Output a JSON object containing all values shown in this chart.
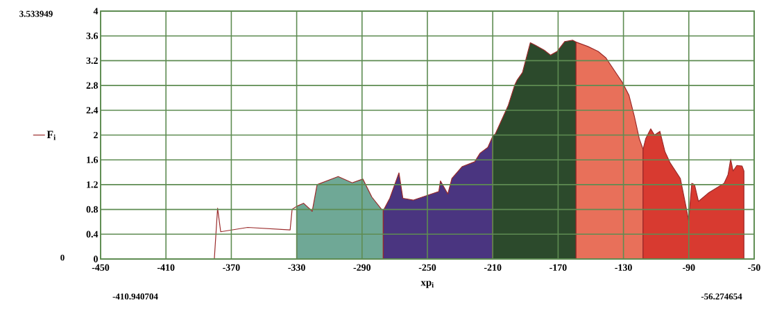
{
  "chart_data": {
    "type": "area",
    "xlabel": "xp$_{i}$",
    "legend": "left",
    "grid": true,
    "xlim": [
      -450,
      -50
    ],
    "ylim": [
      0,
      4
    ],
    "xticks": [
      -450,
      -410,
      -370,
      -330,
      -290,
      -250,
      -210,
      -170,
      -130,
      -90,
      -50
    ],
    "yticks": [
      0,
      0.4,
      0.8,
      1.2,
      1.6,
      2,
      2.4,
      2.8,
      3.2,
      3.6,
      4
    ],
    "annotations": [
      "3.533949",
      "0",
      "-410.940704",
      "-56.274654"
    ],
    "series": [
      {
        "name": "F$_{i}$",
        "type": "line",
        "color": "#9a2a2a",
        "x": [
          -410.940704,
          -380.4,
          -378.4,
          -376.5,
          -360,
          -334,
          -332.8,
          -330
        ],
        "values": [
          0,
          0,
          0.82,
          0.44,
          0.51,
          0.47,
          0.8,
          0.85
        ]
      },
      {
        "color": "#6fa896",
        "x": [
          -330,
          -325.8,
          -320.5,
          -317.5,
          -304.6,
          -296,
          -289.5,
          -284,
          -278,
          -277
        ],
        "values": [
          0.85,
          0.9,
          0.77,
          1.2,
          1.33,
          1.23,
          1.29,
          1.0,
          0.8,
          0.8
        ]
      },
      {
        "color": "#4a3580",
        "x": [
          -277,
          -273,
          -267.4,
          -265,
          -258.7,
          -243,
          -242,
          -237.5,
          -235,
          -228.8,
          -221,
          -217.7,
          -213,
          -210
        ],
        "values": [
          0.78,
          0.98,
          1.39,
          0.98,
          0.95,
          1.09,
          1.26,
          1.05,
          1.3,
          1.49,
          1.57,
          1.71,
          1.8,
          1.98
        ]
      },
      {
        "color": "#2c4a2c",
        "x": [
          -210,
          -208.4,
          -200.5,
          -196.5,
          -195,
          -191.8,
          -187,
          -184,
          -178.5,
          -174.6,
          -170.6,
          -165.9,
          -161,
          -159
        ],
        "values": [
          1.98,
          2.02,
          2.48,
          2.81,
          2.89,
          3.01,
          3.49,
          3.45,
          3.37,
          3.29,
          3.35,
          3.51,
          3.53,
          3.5
        ]
      },
      {
        "color": "#e8705a",
        "x": [
          -159,
          -151.8,
          -145.5,
          -140.9,
          -134.5,
          -130.7,
          -126.6,
          -123.4,
          -120.3,
          -118
        ],
        "values": [
          3.5,
          3.43,
          3.35,
          3.25,
          3.0,
          2.85,
          2.64,
          2.31,
          1.94,
          1.77
        ]
      },
      {
        "color": "#d83a30",
        "x": [
          -118,
          -116.4,
          -113.3,
          -111,
          -107.7,
          -104.6,
          -101.4,
          -95.2,
          -92,
          -90.1,
          -88.2,
          -86.5,
          -84.1,
          -77.8,
          -68.4,
          -66,
          -64.4,
          -62.9,
          -60.6,
          -57.4,
          -56.274654
        ],
        "values": [
          1.77,
          1.94,
          2.1,
          2.0,
          2.06,
          1.73,
          1.55,
          1.3,
          0.88,
          0.62,
          1.22,
          1.2,
          0.93,
          1.07,
          1.22,
          1.36,
          1.61,
          1.42,
          1.51,
          1.5,
          1.42
        ]
      }
    ]
  }
}
